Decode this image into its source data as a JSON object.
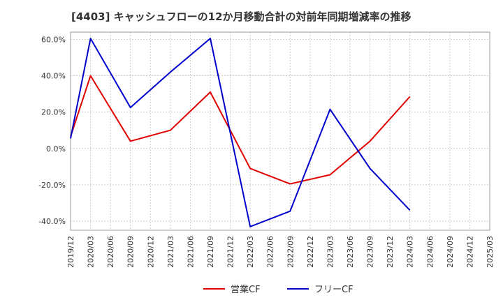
{
  "chart_data": {
    "type": "line",
    "title": "[4403]  キャッシュフローの12か月移動合計の対前年同期増減率の推移",
    "xlabel": "",
    "ylabel": "",
    "x_ticks": [
      "2019/12",
      "2020/03",
      "2020/06",
      "2020/09",
      "2020/12",
      "2021/03",
      "2021/06",
      "2021/09",
      "2021/12",
      "2022/03",
      "2022/06",
      "2022/09",
      "2022/12",
      "2023/03",
      "2023/06",
      "2023/09",
      "2023/12",
      "2024/03",
      "2024/06",
      "2024/09",
      "2024/12",
      "2025/03"
    ],
    "y_ticks": [
      "-40.0%",
      "-20.0%",
      "0.0%",
      "20.0%",
      "40.0%",
      "60.0%"
    ],
    "y_tick_values": [
      -40,
      -20,
      0,
      20,
      40,
      60
    ],
    "ylim": [
      -45,
      64
    ],
    "grid": true,
    "legend": "bottom",
    "series": [
      {
        "name": "営業CF",
        "color": "#e00000",
        "points": [
          [
            "2019/12",
            6.5
          ],
          [
            "2020/03",
            40.0
          ],
          [
            "2020/09",
            4.0
          ],
          [
            "2021/03",
            10.0
          ],
          [
            "2021/09",
            31.0
          ],
          [
            "2022/03",
            -11.0
          ],
          [
            "2022/09",
            -19.5
          ],
          [
            "2023/03",
            -14.5
          ],
          [
            "2023/09",
            4.0
          ],
          [
            "2024/03",
            28.5
          ]
        ]
      },
      {
        "name": "フリーCF",
        "color": "#0000cc",
        "points": [
          [
            "2019/12",
            5.5
          ],
          [
            "2020/03",
            60.5
          ],
          [
            "2020/09",
            22.5
          ],
          [
            "2021/03",
            42.0
          ],
          [
            "2021/09",
            60.5
          ],
          [
            "2022/03",
            -43.0
          ],
          [
            "2022/09",
            -34.5
          ],
          [
            "2023/03",
            21.5
          ],
          [
            "2023/09",
            -11.0
          ],
          [
            "2024/03",
            -34.0
          ]
        ]
      }
    ]
  }
}
